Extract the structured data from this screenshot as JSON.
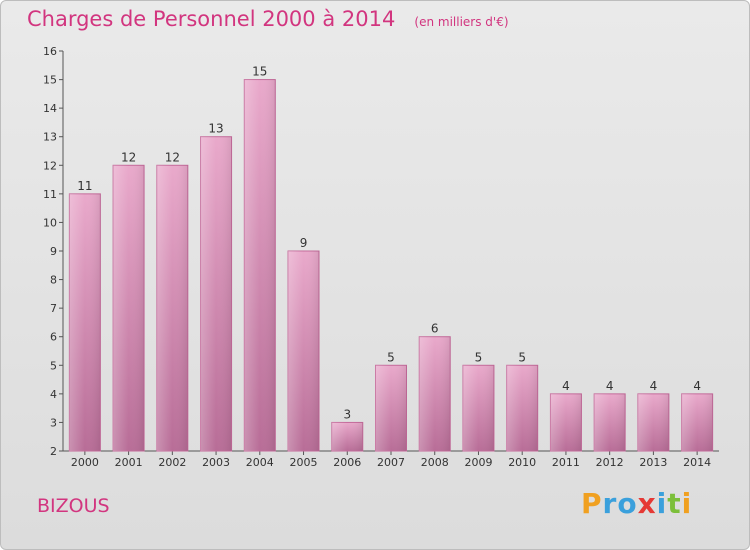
{
  "header": {
    "title": "Charges de Personnel 2000 à 2014",
    "subtitle": "(en milliers d'€)"
  },
  "footer": {
    "place": "BIZOUS",
    "logo_letters": [
      "P",
      "r",
      "o",
      "x",
      "i",
      "t",
      "i"
    ],
    "logo_colors": [
      "#f0a020",
      "#3aa0dc",
      "#3aa0dc",
      "#e53935",
      "#3aa0dc",
      "#7cbf3a",
      "#f0a020"
    ]
  },
  "chart_data": {
    "type": "bar",
    "title": "Charges de Personnel 2000 à 2014",
    "subtitle": "(en milliers d'€)",
    "categories": [
      "2000",
      "2001",
      "2002",
      "2003",
      "2004",
      "2005",
      "2006",
      "2007",
      "2008",
      "2009",
      "2010",
      "2011",
      "2012",
      "2013",
      "2014"
    ],
    "values": [
      11,
      12,
      12,
      13,
      15,
      9,
      3,
      5,
      6,
      5,
      5,
      4,
      4,
      4,
      4
    ],
    "ylim": [
      2,
      16
    ],
    "yticks": [
      2,
      3,
      4,
      5,
      6,
      7,
      8,
      9,
      10,
      11,
      12,
      13,
      14,
      15,
      16
    ],
    "bar_color": "#d88cb4",
    "grid": false,
    "data_labels": true
  }
}
